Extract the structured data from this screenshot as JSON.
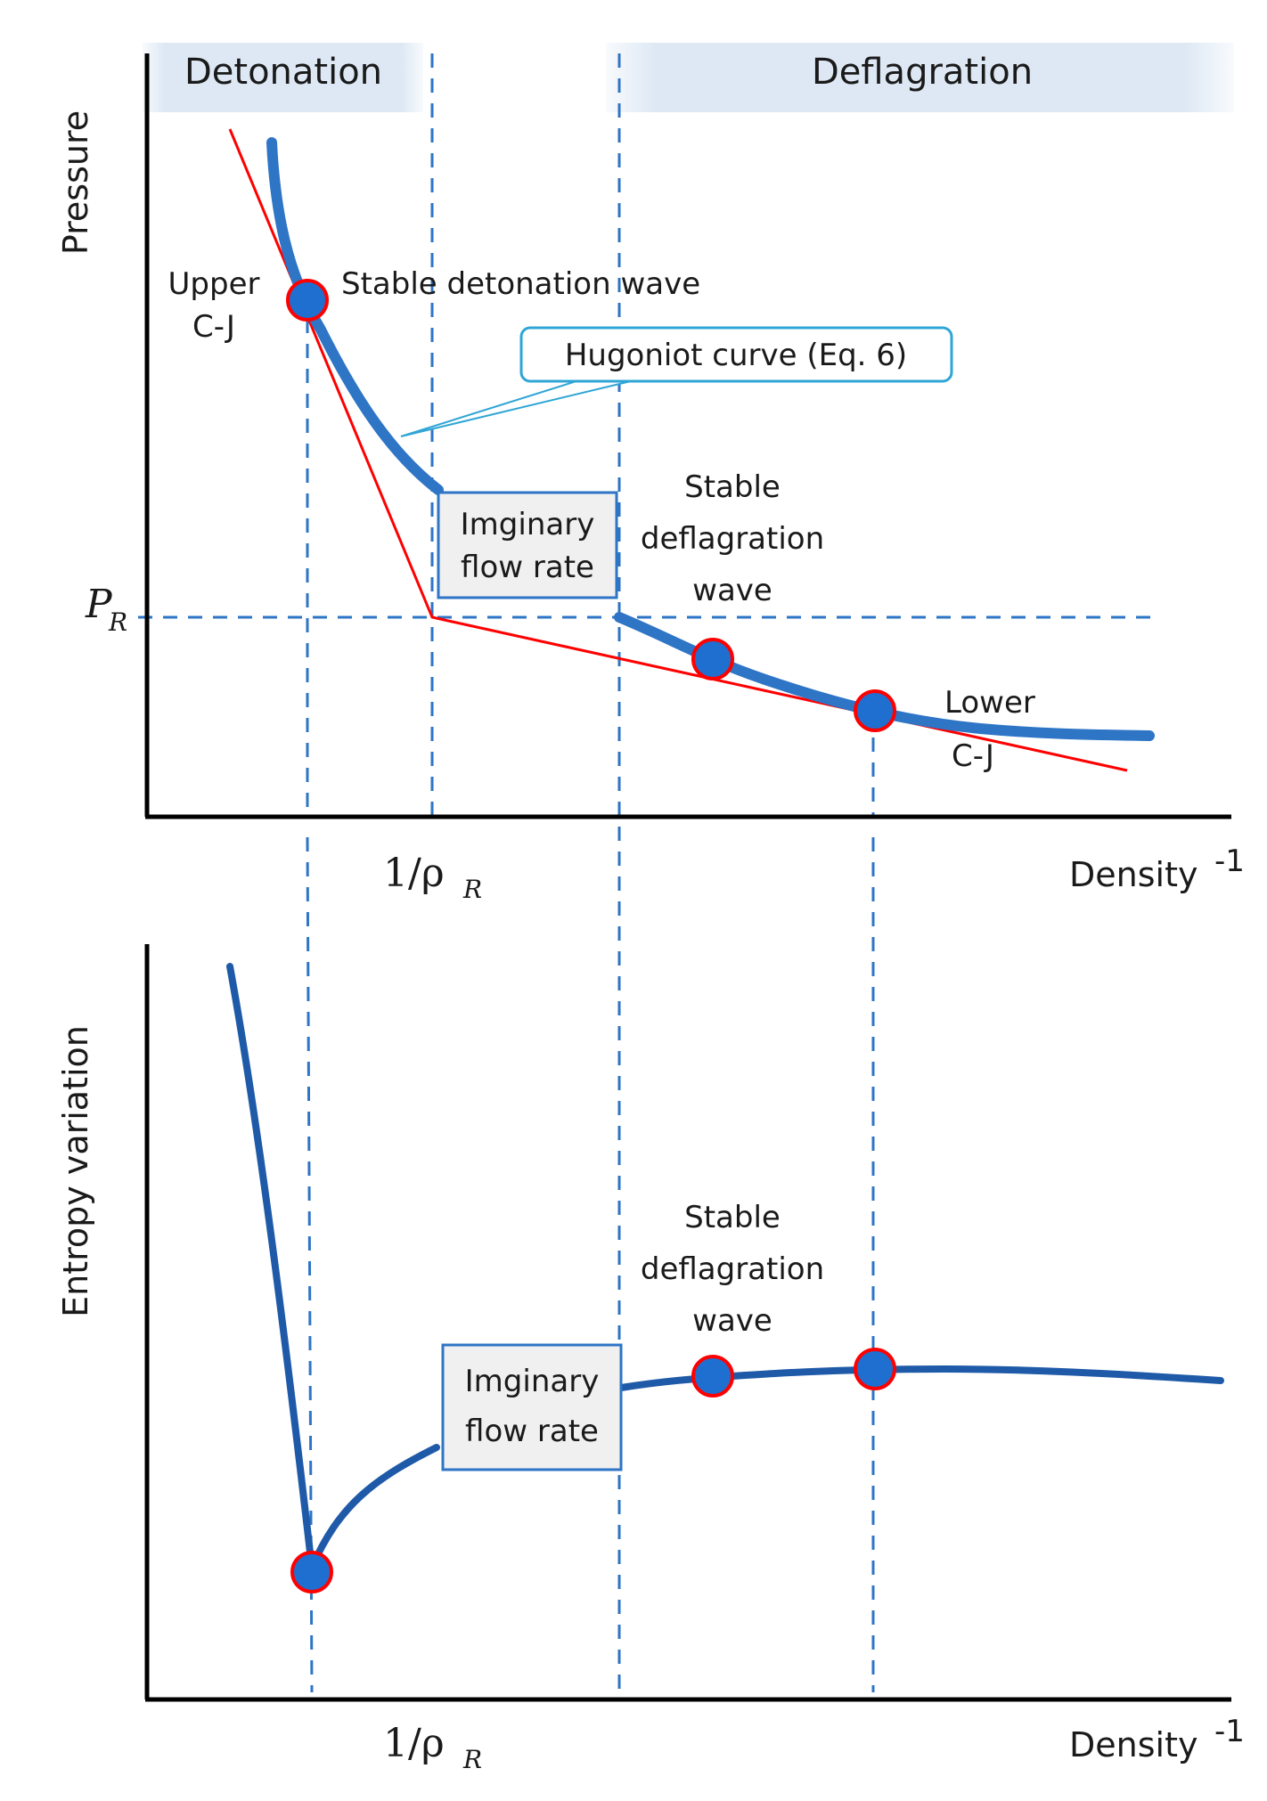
{
  "header": {
    "detonation": "Detonation",
    "deflagration": "Deflagration"
  },
  "top_plot": {
    "y_axis_title": "Pressure",
    "x_axis_title": "Density",
    "x_axis_superscript": "-1",
    "pr_label_main": "P",
    "pr_label_sub": "R",
    "rho_label_main": "1/ρ",
    "rho_label_sub": "R",
    "upper_cj_line1": "Upper",
    "upper_cj_line2": "C-J",
    "stable_detonation": "Stable detonation wave",
    "hugoniot_callout": "Hugoniot curve (Eq. 6)",
    "imaginary_line1": "Imginary",
    "imaginary_line2": "flow rate",
    "stable_deflag_line1": "Stable",
    "stable_deflag_line2": "deflagration",
    "stable_deflag_line3": "wave",
    "lower_cj_line1": "Lower",
    "lower_cj_line2": "C-J"
  },
  "bottom_plot": {
    "y_axis_title": "Entropy variation",
    "x_axis_title": "Density",
    "x_axis_superscript": "-1",
    "rho_label_main": "1/ρ",
    "rho_label_sub": "R",
    "imaginary_line1": "Imginary",
    "imaginary_line2": "flow rate",
    "stable_deflag_line1": "Stable",
    "stable_deflag_line2": "deflagration",
    "stable_deflag_line3": "wave"
  },
  "colors": {
    "curve": "#2e75c6",
    "curve_dark": "#1f5aa8",
    "rayleigh": "#ff0000",
    "guide": "#2e75c6",
    "marker_fill": "#1f6fd1",
    "marker_ring": "#ff0000",
    "header_bg": "#dde8f4",
    "box_fill": "#f0f0f0",
    "axis": "#000000"
  }
}
